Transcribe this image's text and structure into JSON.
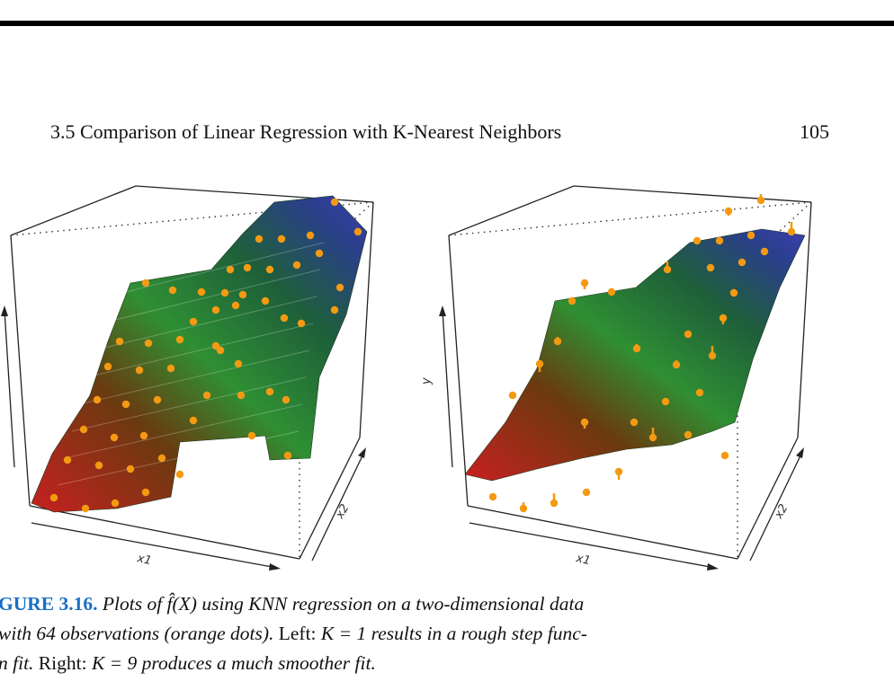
{
  "header": {
    "section_title": "3.5 Comparison of Linear Regression with K-Nearest Neighbors",
    "page_number": "105"
  },
  "figure": {
    "left_plot": {
      "x_axis": "x1",
      "x2_axis": "x2",
      "y_axis": ""
    },
    "right_plot": {
      "x_axis": "x1",
      "x2_axis": "x2",
      "y_axis": "y"
    },
    "colors": {
      "low": "#d42a2a",
      "mid": "#2e9a3a",
      "high": "#3a3fa8",
      "points": "#f39a12",
      "label": "#1a6fc4"
    }
  },
  "caption": {
    "line1_label": "GURE 3.16.",
    "line1_text": "Plots of f̂(X) using KNN regression on a two-dimensional data",
    "line2_a": "with 64 observations (orange dots).",
    "line2_b": "Left:",
    "line2_c": "K = 1 results in a rough step func-",
    "line3_a": "n fit.",
    "line3_b": "Right:",
    "line3_c": "K = 9 produces a much smoother fit."
  }
}
